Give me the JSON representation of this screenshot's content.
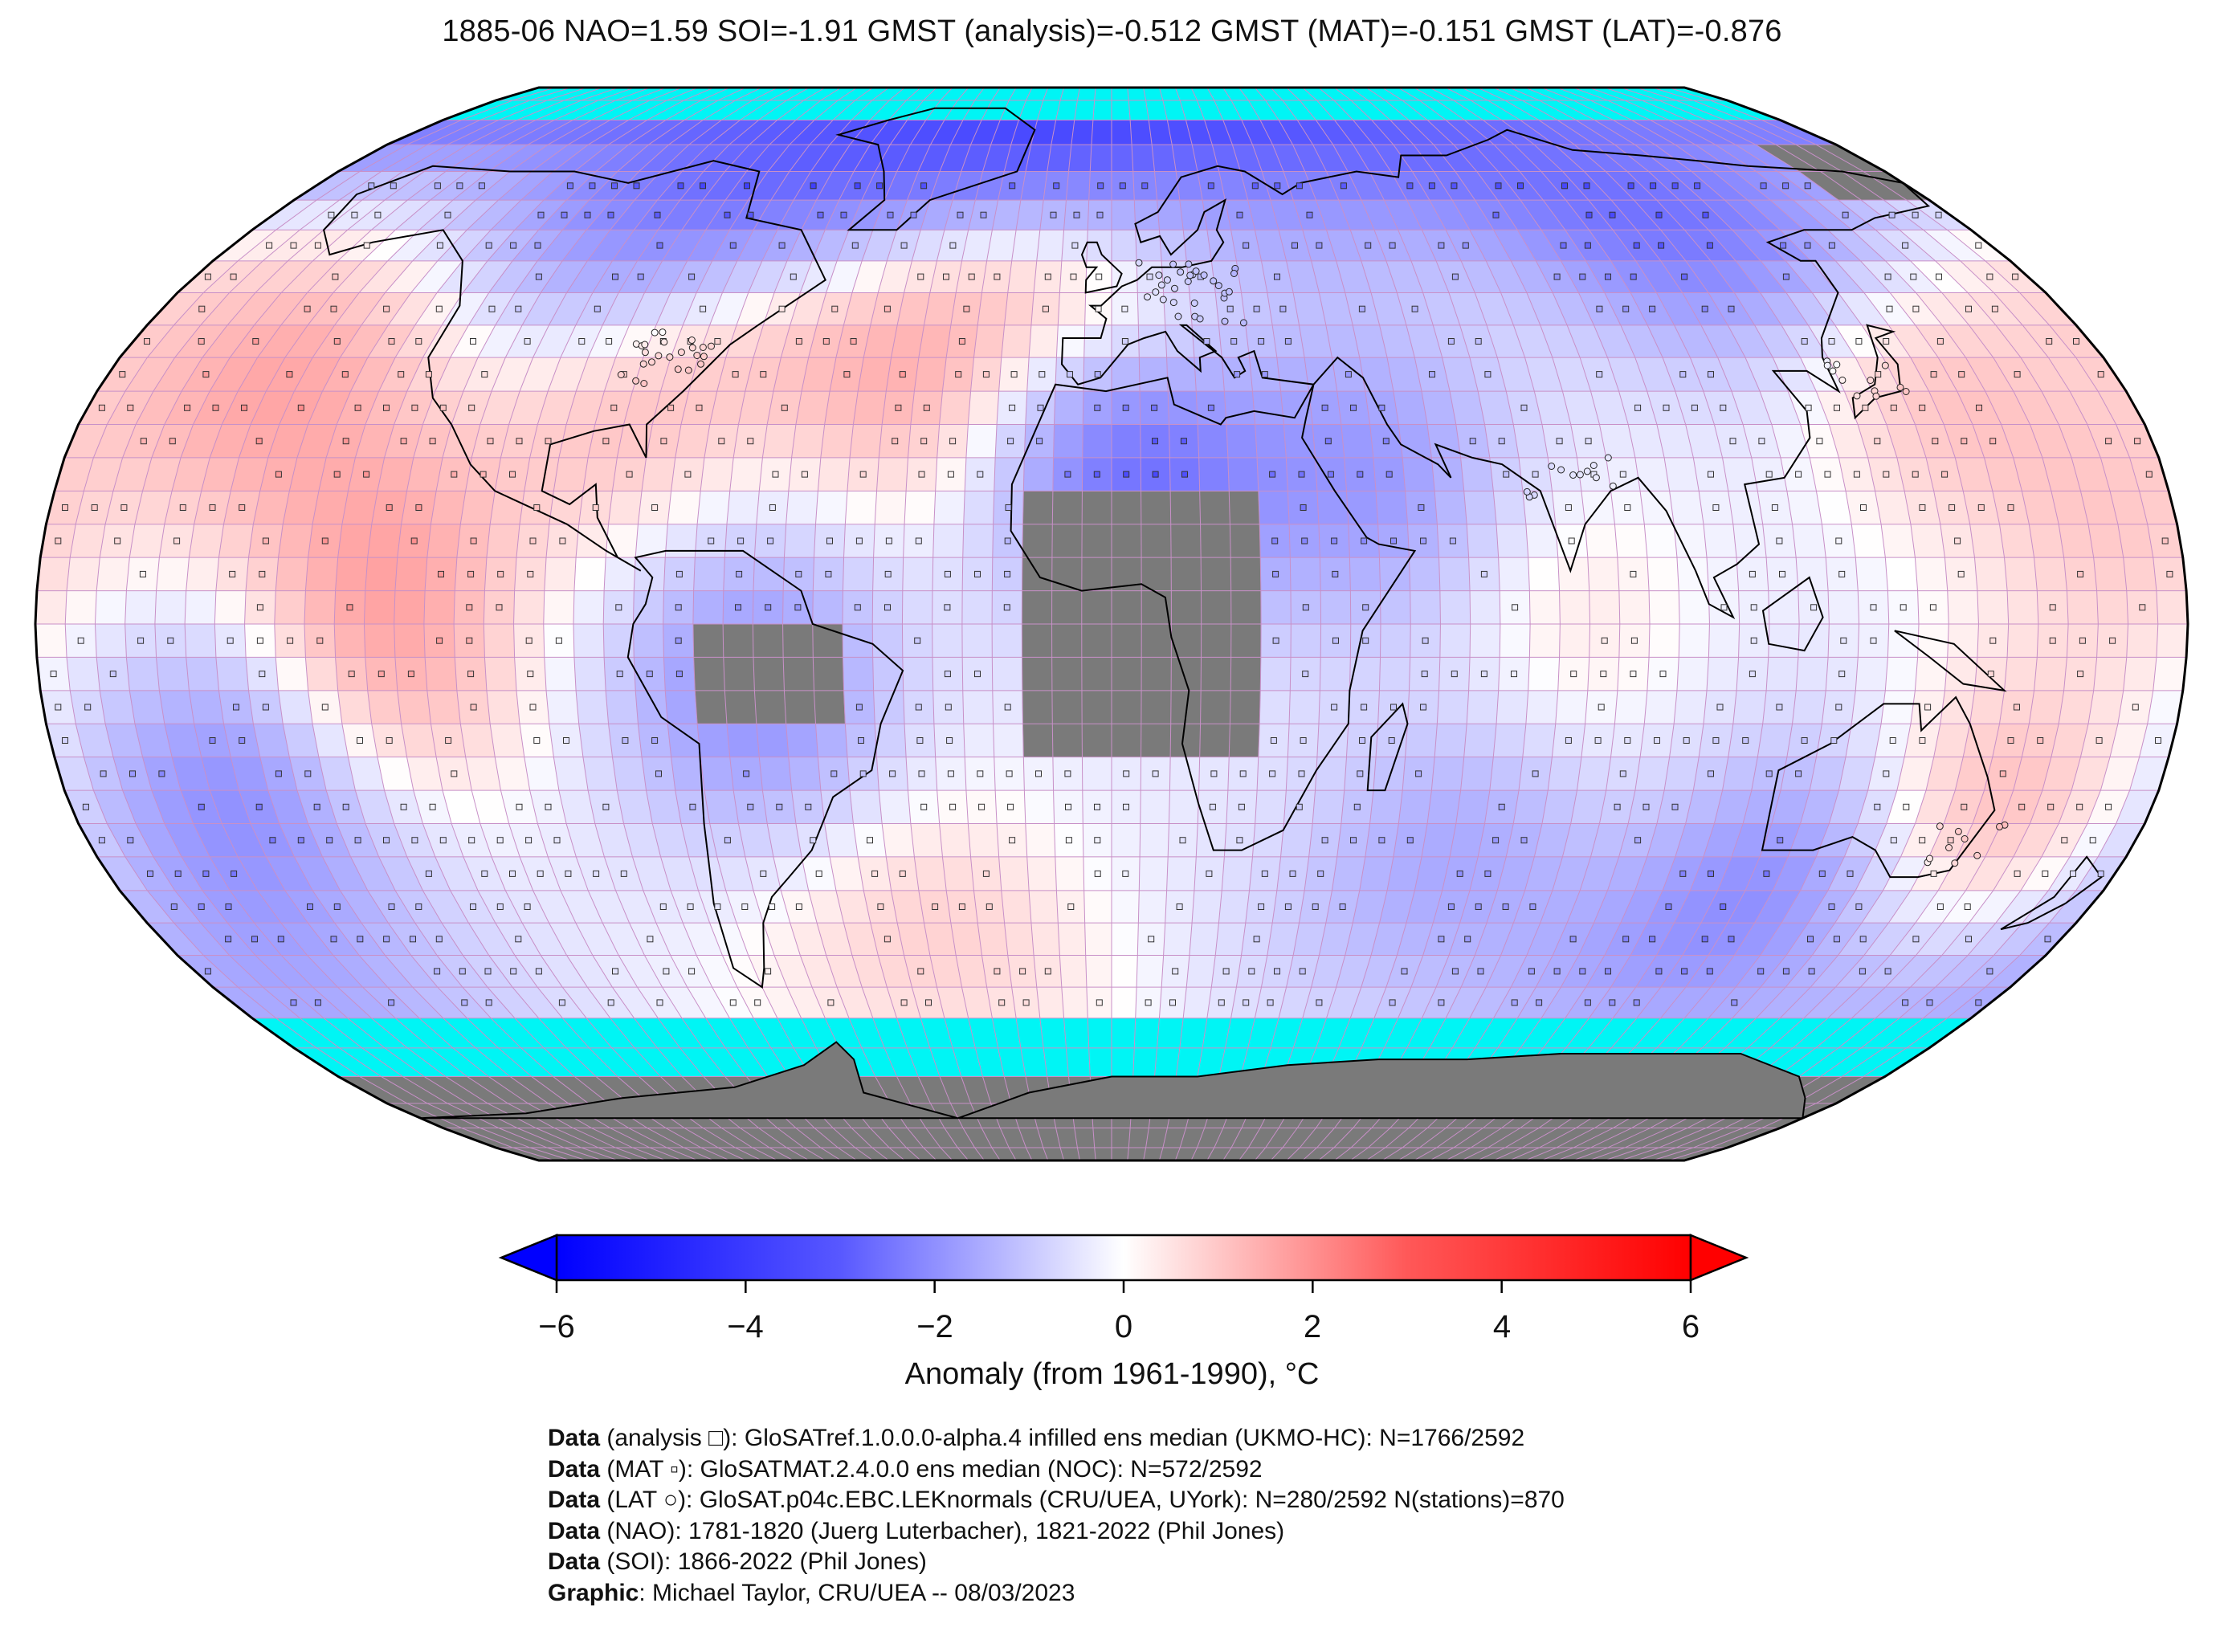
{
  "title": "1885-06 NAO=1.59 SOI=-1.91 GMST (analysis)=-0.512 GMST (MAT)=-0.151 GMST (LAT)=-0.876",
  "colors": {
    "ocean_no_data": "#00f5f5",
    "land_no_data": "#7a7a7a",
    "grid_line": "#c890c8",
    "coast": "#000000",
    "cold": "#0000ff",
    "warm": "#ff0000",
    "neutral": "#ffffff"
  },
  "colorbar": {
    "label": "Anomaly (from 1961-1990), °C",
    "ticks": [
      "−6",
      "−4",
      "−2",
      "0",
      "2",
      "4",
      "6"
    ],
    "range": [
      -6,
      6
    ],
    "extend": "both"
  },
  "credits": [
    {
      "bold": "Data",
      "text": " (analysis □): GloSATref.1.0.0.0-alpha.4 infilled ens median (UKMO-HC): N=1766/2592"
    },
    {
      "bold": "Data",
      "text": " (MAT ▫): GloSATMAT.2.4.0.0 ens median (NOC): N=572/2592"
    },
    {
      "bold": "Data",
      "text": " (LAT ○): GloSAT.p04c.EBC.LEKnormals (CRU/UEA, UYork): N=280/2592 N(stations)=870"
    },
    {
      "bold": "Data",
      "text": " (NAO): 1781-1820 (Juerg Luterbacher), 1821-2022 (Phil Jones)"
    },
    {
      "bold": "Data",
      "text": " (SOI): 1866-2022 (Phil Jones)"
    },
    {
      "bold": "Graphic",
      "text": ": Michael Taylor, CRU/UEA -- 08/03/2023"
    }
  ],
  "map": {
    "projection": "Robinson",
    "grid_resolution_deg": 5,
    "anomaly_features": [
      {
        "name": "north-pacific-warm",
        "lon": -150,
        "lat": 38,
        "anom": 1.6
      },
      {
        "name": "east-pacific-warm",
        "lon": -125,
        "lat": 15,
        "anom": 1.1
      },
      {
        "name": "tropical-east-pacific-warm",
        "lon": -120,
        "lat": -5,
        "anom": 1.3
      },
      {
        "name": "north-atlantic-warm",
        "lon": -35,
        "lat": 42,
        "anom": 2.0
      },
      {
        "name": "us-southeast-warm",
        "lon": -85,
        "lat": 35,
        "anom": 1.4
      },
      {
        "name": "europe-warm",
        "lon": 15,
        "lat": 48,
        "anom": 2.0
      },
      {
        "name": "east-asia-warm",
        "lon": 140,
        "lat": 40,
        "anom": 1.4
      },
      {
        "name": "west-pacific-warm",
        "lon": 170,
        "lat": 15,
        "anom": 1.0
      },
      {
        "name": "indian-ocean-warm",
        "lon": 75,
        "lat": 0,
        "anom": 0.6
      },
      {
        "name": "australia-warm",
        "lon": 150,
        "lat": -30,
        "anom": 1.5
      },
      {
        "name": "south-atlantic-warm",
        "lon": -35,
        "lat": -45,
        "anom": 1.0
      },
      {
        "name": "canada-cold",
        "lon": -100,
        "lat": 60,
        "anom": -2.2
      },
      {
        "name": "greenland-cold",
        "lon": -50,
        "lat": 70,
        "anom": -2.0
      },
      {
        "name": "scandinavia-cold",
        "lon": 25,
        "lat": 65,
        "anom": -2.6
      },
      {
        "name": "siberia-cold",
        "lon": 120,
        "lat": 60,
        "anom": -3.0
      },
      {
        "name": "sahara-cold",
        "lon": 5,
        "lat": 25,
        "anom": -3.0
      },
      {
        "name": "arabia-cold",
        "lon": 45,
        "lat": 22,
        "anom": -1.6
      },
      {
        "name": "south-america-cold",
        "lon": -60,
        "lat": -10,
        "anom": -1.9
      },
      {
        "name": "tropical-pacific-cold",
        "lon": -150,
        "lat": -25,
        "anom": -1.8
      },
      {
        "name": "southern-ocean-cold",
        "lon": 120,
        "lat": -42,
        "anom": -2.2
      },
      {
        "name": "south-indian-cold",
        "lon": 60,
        "lat": -35,
        "anom": -1.3
      },
      {
        "name": "west-pacific-south-cold",
        "lon": -170,
        "lat": -55,
        "anom": -1.2
      }
    ],
    "ocean_no_data_bands_lat": [
      -90,
      -60,
      80,
      90
    ],
    "land_no_data_regions": [
      {
        "name": "central-africa",
        "lon": [
          -15,
          25
        ],
        "lat": [
          -20,
          20
        ]
      },
      {
        "name": "amazon",
        "lon": [
          -70,
          -45
        ],
        "lat": [
          -15,
          0
        ]
      },
      {
        "name": "antarctica",
        "lon": [
          -180,
          180
        ],
        "lat": [
          -90,
          -68
        ]
      },
      {
        "name": "far-east-siberia",
        "lon": [
          160,
          180
        ],
        "lat": [
          65,
          75
        ]
      }
    ]
  }
}
